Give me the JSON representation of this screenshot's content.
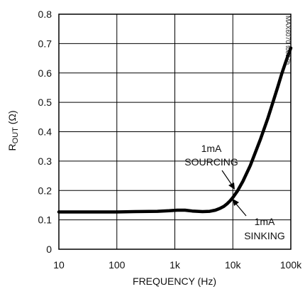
{
  "chart_data": {
    "type": "line",
    "title": "",
    "xlabel": "FREQUENCY (Hz)",
    "ylabel_main": "R",
    "ylabel_sub": "OUT",
    "ylabel_unit": " (Ω)",
    "x_scale": "log",
    "xlim": [
      10,
      100000
    ],
    "ylim": [
      0,
      0.8
    ],
    "grid": true,
    "x_ticks": [
      {
        "value": 10,
        "label": "10"
      },
      {
        "value": 100,
        "label": "100"
      },
      {
        "value": 1000,
        "label": "1k"
      },
      {
        "value": 10000,
        "label": "10k"
      },
      {
        "value": 100000,
        "label": "100k"
      }
    ],
    "y_ticks": [
      {
        "value": 0,
        "label": "0"
      },
      {
        "value": 0.1,
        "label": "0.1"
      },
      {
        "value": 0.2,
        "label": "0.2"
      },
      {
        "value": 0.3,
        "label": "0.3"
      },
      {
        "value": 0.4,
        "label": "0.4"
      },
      {
        "value": 0.5,
        "label": "0.5"
      },
      {
        "value": 0.6,
        "label": "0.6"
      },
      {
        "value": 0.7,
        "label": "0.7"
      },
      {
        "value": 0.8,
        "label": "0.8"
      }
    ],
    "series": [
      {
        "points": [
          [
            10,
            0.127
          ],
          [
            20,
            0.127
          ],
          [
            50,
            0.127
          ],
          [
            100,
            0.127
          ],
          [
            200,
            0.128
          ],
          [
            500,
            0.129
          ],
          [
            800,
            0.131
          ],
          [
            1100,
            0.133
          ],
          [
            1500,
            0.133
          ],
          [
            2000,
            0.13
          ],
          [
            3000,
            0.128
          ],
          [
            4000,
            0.129
          ],
          [
            5000,
            0.133
          ],
          [
            6000,
            0.139
          ],
          [
            7000,
            0.146
          ],
          [
            8000,
            0.155
          ],
          [
            9000,
            0.165
          ],
          [
            10000,
            0.176
          ],
          [
            12000,
            0.198
          ],
          [
            15000,
            0.232
          ],
          [
            20000,
            0.285
          ],
          [
            30000,
            0.375
          ],
          [
            40000,
            0.445
          ],
          [
            50000,
            0.505
          ],
          [
            60000,
            0.555
          ],
          [
            70000,
            0.598
          ],
          [
            80000,
            0.632
          ],
          [
            90000,
            0.661
          ],
          [
            100000,
            0.685
          ]
        ]
      }
    ],
    "annotations": [
      {
        "lines": [
          "1mA",
          "SOURCING"
        ]
      },
      {
        "lines": [
          "1mA",
          "SINKING"
        ]
      }
    ],
    "watermark": "MAX6070 toc07b"
  }
}
